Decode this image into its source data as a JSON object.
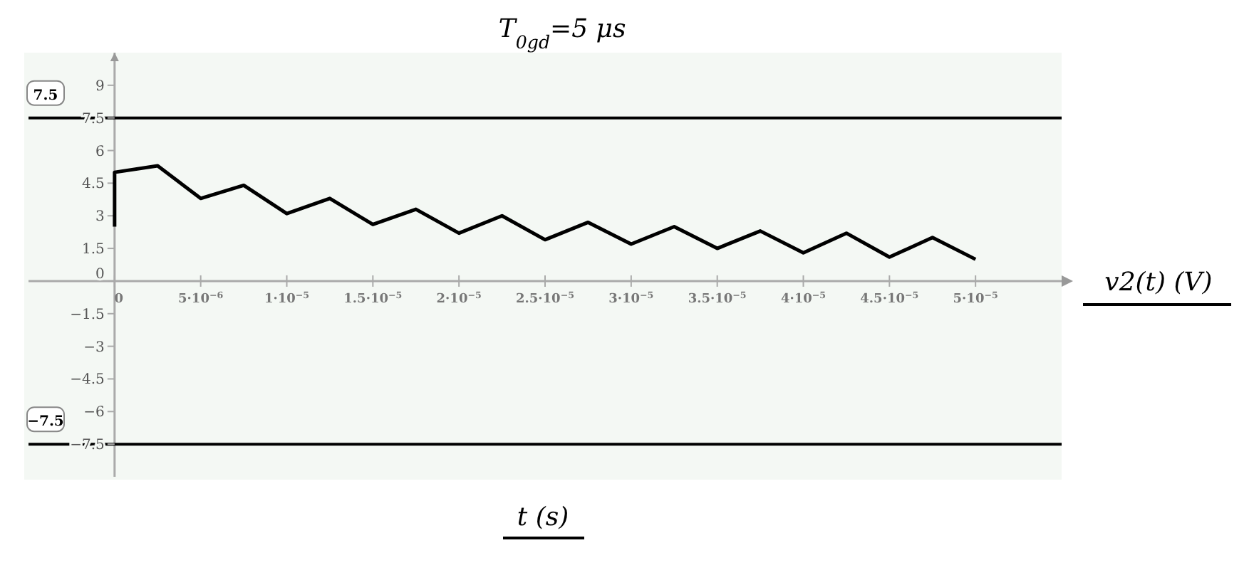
{
  "chart_data": {
    "type": "line",
    "title": "T$_{0gd}$=5 μs",
    "xlabel": "t (s)",
    "ylabel": "v2(t) (V)",
    "x": [
      0,
      0,
      2.5e-06,
      5e-06,
      7.5e-06,
      1e-05,
      1.25e-05,
      1.5e-05,
      1.75e-05,
      2e-05,
      2.25e-05,
      2.5e-05,
      2.75e-05,
      3e-05,
      3.25e-05,
      3.5e-05,
      3.75e-05,
      4e-05,
      4.25e-05,
      4.5e-05,
      4.75e-05,
      5e-05
    ],
    "series": [
      {
        "color": "#000000",
        "values": [
          2.5,
          5.0,
          5.3,
          3.8,
          4.4,
          3.1,
          3.8,
          2.6,
          3.3,
          2.2,
          3.0,
          1.9,
          2.7,
          1.7,
          2.5,
          1.5,
          2.3,
          1.3,
          2.2,
          1.1,
          2.0,
          1.0
        ]
      }
    ],
    "xlim": [
      -5e-06,
      5.5e-05
    ],
    "ylim": [
      -9,
      10.5
    ],
    "xticks": [
      0,
      {
        "value": 5e-06,
        "label": "5·10$^{−6}$"
      },
      {
        "value": 1e-05,
        "label": "1·10$^{−5}$"
      },
      {
        "value": 1.5e-05,
        "label": "1.5·10$^{−5}$"
      },
      {
        "value": 2e-05,
        "label": "2·10$^{−5}$"
      },
      {
        "value": 2.5e-05,
        "label": "2.5·10$^{−5}$"
      },
      {
        "value": 3e-05,
        "label": "3·10$^{−5}$"
      },
      {
        "value": 3.5e-05,
        "label": "3.5·10$^{−5}$"
      },
      {
        "value": 4e-05,
        "label": "4·10$^{−5}$"
      },
      {
        "value": 4.5e-05,
        "label": "4.5·10$^{−5}$"
      },
      {
        "value": 5e-05,
        "label": "5·10$^{−5}$"
      }
    ],
    "yticks": [
      {
        "value": -7.5,
        "label": "−7.5"
      },
      {
        "value": -6,
        "label": "−6"
      },
      {
        "value": -4.5,
        "label": "−4.5"
      },
      {
        "value": -3,
        "label": "−3"
      },
      {
        "value": -1.5,
        "label": "−1.5"
      },
      0,
      1.5,
      3,
      4.5,
      6,
      7.5,
      9
    ],
    "ref_lines": [
      {
        "axis": "y",
        "value": 7.5,
        "label": "7.5",
        "color": "#000000"
      },
      {
        "axis": "y",
        "value": -7.5,
        "label": "−7.5",
        "color": "#000000"
      }
    ],
    "grid": false,
    "marker": "none",
    "line_style": "solid"
  }
}
